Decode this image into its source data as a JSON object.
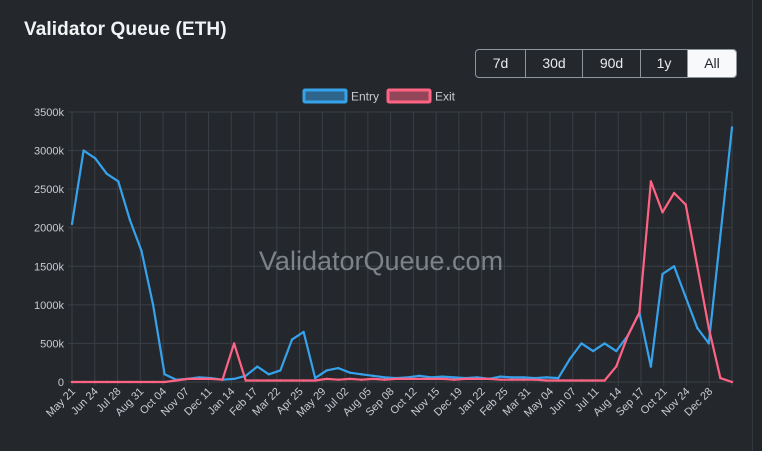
{
  "title": "Validator Queue (ETH)",
  "range_buttons": [
    {
      "label": "7d",
      "active": false
    },
    {
      "label": "30d",
      "active": false
    },
    {
      "label": "90d",
      "active": false
    },
    {
      "label": "1y",
      "active": false
    },
    {
      "label": "All",
      "active": true
    }
  ],
  "watermark": "ValidatorQueue.com",
  "colors": {
    "entry": "#36a2eb",
    "exit": "#ff6384",
    "grid": "#3a3f45",
    "text": "#c8ccd0"
  },
  "chart_data": {
    "type": "line",
    "legend_position": "top",
    "grid": true,
    "ylim": [
      0,
      3500000
    ],
    "y_ticks": [
      {
        "value": 0,
        "label": "0"
      },
      {
        "value": 500000,
        "label": "500k"
      },
      {
        "value": 1000000,
        "label": "1000k"
      },
      {
        "value": 1500000,
        "label": "1500k"
      },
      {
        "value": 2000000,
        "label": "2000k"
      },
      {
        "value": 2500000,
        "label": "2500k"
      },
      {
        "value": 3000000,
        "label": "3000k"
      },
      {
        "value": 3500000,
        "label": "3500k"
      }
    ],
    "x_tick_labels": [
      "May 21",
      "Jun 24",
      "Jul 28",
      "Aug 31",
      "Oct 04",
      "Nov 07",
      "Dec 11",
      "Jan 14",
      "Feb 17",
      "Mar 22",
      "Apr 25",
      "May 29",
      "Jul 02",
      "Aug 05",
      "Sep 08",
      "Oct 12",
      "Nov 15",
      "Dec 19",
      "Jan 22",
      "Feb 25",
      "Mar 31",
      "May 04",
      "Jun 07",
      "Jul 11",
      "Aug 14",
      "Sep 17",
      "Oct 21",
      "Nov 24",
      "Dec 28"
    ],
    "x": [
      "May 21",
      "Jun 04",
      "Jun 24",
      "Jul 10",
      "Jul 28",
      "Aug 14",
      "Aug 31",
      "Sep 18",
      "Oct 04",
      "Oct 20",
      "Nov 07",
      "Nov 24",
      "Dec 11",
      "Dec 28",
      "Jan 14",
      "Jan 31",
      "Feb 17",
      "Mar 06",
      "Mar 22",
      "Apr 08",
      "Apr 25",
      "May 12",
      "May 29",
      "Jun 15",
      "Jul 02",
      "Jul 19",
      "Aug 05",
      "Aug 22",
      "Sep 08",
      "Sep 25",
      "Oct 12",
      "Oct 29",
      "Nov 15",
      "Dec 02",
      "Dec 19",
      "Jan 05",
      "Jan 22",
      "Feb 08",
      "Feb 25",
      "Mar 14",
      "Mar 31",
      "Apr 17",
      "May 04",
      "May 21",
      "Jun 07",
      "Jun 24",
      "Jul 11",
      "Jul 28",
      "Aug 14",
      "Aug 31",
      "Sep 17",
      "Oct 04",
      "Oct 21",
      "Nov 07",
      "Nov 24",
      "Dec 11",
      "Dec 28",
      "Jan 10"
    ],
    "series": [
      {
        "name": "Entry",
        "values": [
          2050000,
          3000000,
          2900000,
          2700000,
          2600000,
          2100000,
          1700000,
          1000000,
          100000,
          30000,
          40000,
          60000,
          50000,
          30000,
          40000,
          80000,
          200000,
          100000,
          150000,
          550000,
          650000,
          50000,
          150000,
          180000,
          120000,
          100000,
          80000,
          60000,
          50000,
          60000,
          80000,
          60000,
          70000,
          60000,
          50000,
          60000,
          40000,
          70000,
          60000,
          60000,
          50000,
          60000,
          50000,
          300000,
          500000,
          400000,
          500000,
          400000,
          600000,
          900000,
          200000,
          1400000,
          1500000,
          1100000,
          700000,
          500000,
          1900000,
          3300000
        ]
      },
      {
        "name": "Exit",
        "values": [
          0,
          0,
          0,
          0,
          0,
          0,
          0,
          0,
          0,
          20000,
          40000,
          40000,
          40000,
          30000,
          500000,
          20000,
          20000,
          20000,
          20000,
          20000,
          20000,
          20000,
          40000,
          30000,
          40000,
          30000,
          40000,
          30000,
          40000,
          40000,
          40000,
          40000,
          40000,
          30000,
          40000,
          40000,
          40000,
          30000,
          30000,
          30000,
          30000,
          20000,
          20000,
          20000,
          20000,
          20000,
          20000,
          200000,
          600000,
          900000,
          2600000,
          2200000,
          2450000,
          2300000,
          1500000,
          700000,
          50000,
          0
        ]
      }
    ]
  }
}
